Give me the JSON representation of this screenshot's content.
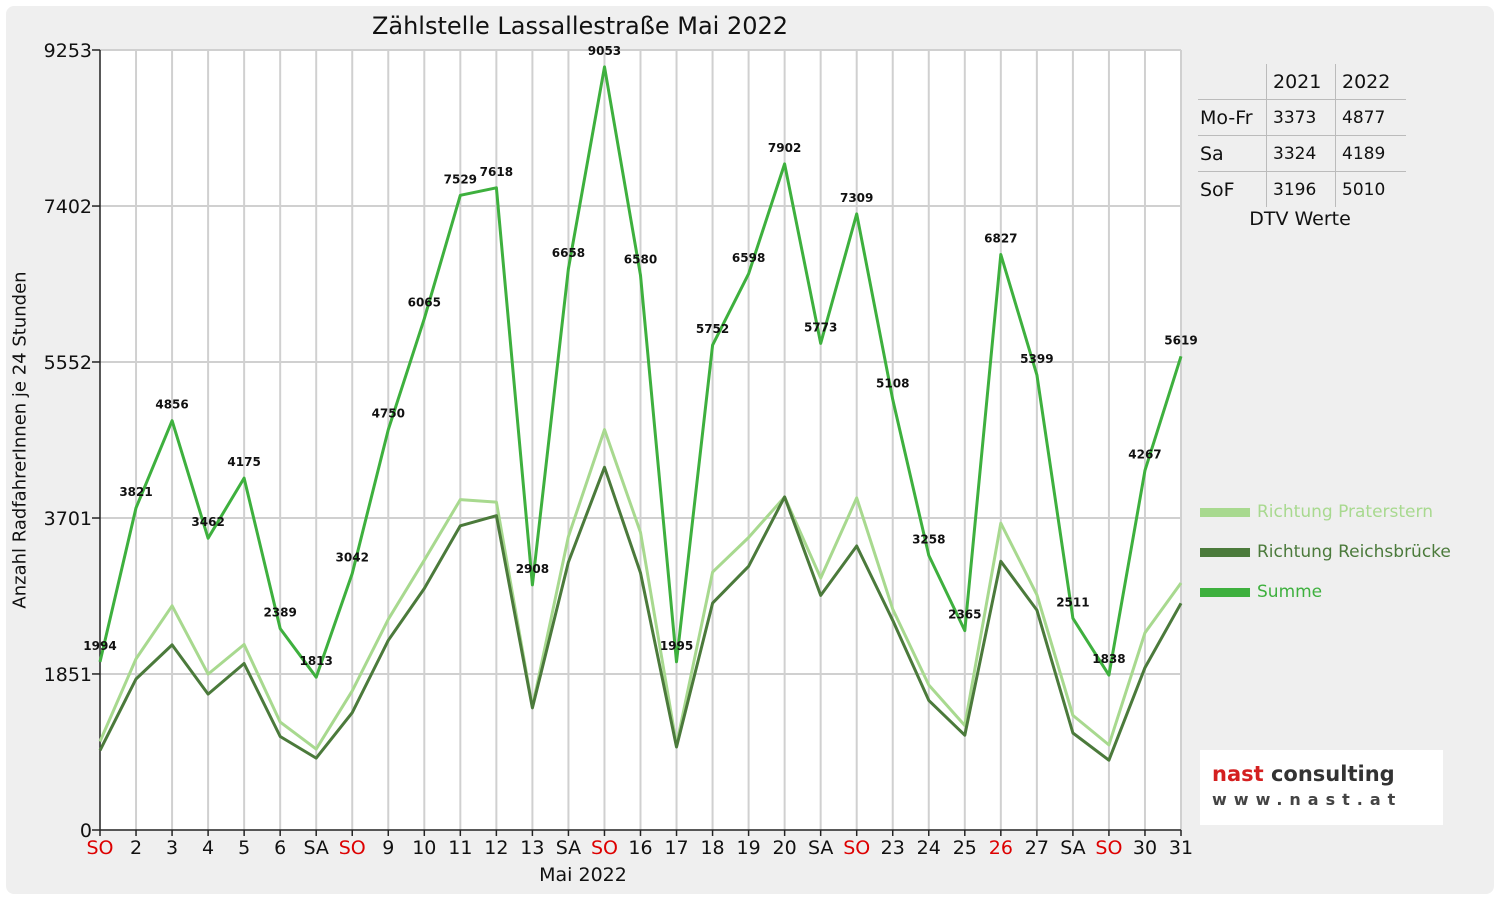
{
  "chart_data": {
    "type": "line",
    "title": "Zählstelle Lassallestraße Mai 2022",
    "xlabel": "Mai 2022",
    "ylabel": "Anzahl RadfahrerInnen je 24 Stunden",
    "ylim": [
      0,
      9253
    ],
    "yticks": [
      "0",
      "1851",
      "3701",
      "5552",
      "7402",
      "9253"
    ],
    "grid": true,
    "legend_position": "right",
    "categories": [
      "SO",
      "2",
      "3",
      "4",
      "5",
      "6",
      "SA",
      "SO",
      "9",
      "10",
      "11",
      "12",
      "13",
      "SA",
      "SO",
      "16",
      "17",
      "18",
      "19",
      "20",
      "SA",
      "SO",
      "23",
      "24",
      "25",
      "26",
      "27",
      "SA",
      "SO",
      "30",
      "31"
    ],
    "highlight_categories": [
      0,
      7,
      14,
      21,
      25,
      28
    ],
    "highlight_color": "#dd0000",
    "series": [
      {
        "name": "Richtung Praterstern",
        "color": "#a8d98f",
        "values": [
          1050,
          2030,
          2660,
          1850,
          2200,
          1280,
          960,
          1650,
          2500,
          3200,
          3920,
          3890,
          1460,
          3480,
          4750,
          3530,
          1010,
          3060,
          3470,
          3950,
          2990,
          3940,
          2620,
          1720,
          1240,
          3640,
          2790,
          1360,
          1010,
          2340,
          2930
        ]
      },
      {
        "name": "Richtung Reichsbrücke",
        "color": "#4b7a3b",
        "values": [
          944,
          1791,
          2196,
          1612,
          1975,
          1109,
          853,
          1392,
          2250,
          2865,
          3609,
          3728,
          1448,
          3178,
          4303,
          3050,
          985,
          2692,
          3128,
          3952,
          2783,
          3369,
          2488,
          1538,
          1125,
          3187,
          2609,
          1151,
          828,
          1927,
          2689
        ]
      },
      {
        "name": "Summe",
        "color": "#3eb03e",
        "labels": true,
        "values": [
          1994,
          3821,
          4856,
          3462,
          4175,
          2389,
          1813,
          3042,
          4750,
          6065,
          7529,
          7618,
          2908,
          6658,
          9053,
          6580,
          1995,
          5752,
          6598,
          7902,
          5773,
          7309,
          5108,
          3258,
          2365,
          6827,
          5399,
          2511,
          1838,
          4267,
          5619
        ]
      }
    ]
  },
  "dtv": {
    "columns": [
      "2021",
      "2022"
    ],
    "rows": [
      {
        "label": "Mo-Fr",
        "v2021": "3373",
        "v2022": "4877"
      },
      {
        "label": "Sa",
        "v2021": "3324",
        "v2022": "4189"
      },
      {
        "label": "SoF",
        "v2021": "3196",
        "v2022": "5010"
      }
    ],
    "caption": "DTV Werte"
  },
  "legend": [
    {
      "label": "Richtung Praterstern",
      "color": "#a8d98f"
    },
    {
      "label": "Richtung Reichsbrücke",
      "color": "#4b7a3b"
    },
    {
      "label": "Summe",
      "color": "#3eb03e"
    }
  ],
  "logo": {
    "word1": "nast",
    "word2": "consulting",
    "word1_color": "#d42020",
    "word2_color": "#333333",
    "url": "www.nast.at"
  }
}
